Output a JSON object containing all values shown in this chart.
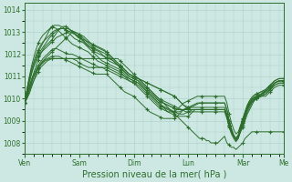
{
  "background_color": "#cde8e2",
  "plot_bg_color": "#cde8e2",
  "grid_color": "#a8cfc8",
  "line_color": "#2d6e2d",
  "xlabel": "Pression niveau de la mer( hPa )",
  "ylim": [
    1007.5,
    1014.3
  ],
  "yticks": [
    1008,
    1009,
    1010,
    1011,
    1012,
    1013,
    1014
  ],
  "day_ticks": [
    0,
    24,
    48,
    72,
    96,
    114
  ],
  "day_labels": [
    "Ven",
    "Sam",
    "Dim",
    "Lun",
    "Mar",
    "Me"
  ],
  "n_points": 115,
  "series": [
    [
      1009.8,
      1010.0,
      1010.3,
      1010.6,
      1010.8,
      1011.0,
      1011.2,
      1011.4,
      1011.5,
      1011.6,
      1011.7,
      1011.75,
      1011.8,
      1011.8,
      1011.8,
      1011.8,
      1011.8,
      1011.8,
      1011.8,
      1011.8,
      1011.8,
      1011.8,
      1011.8,
      1011.8,
      1011.8,
      1011.8,
      1011.8,
      1011.8,
      1011.8,
      1011.8,
      1011.8,
      1011.8,
      1011.8,
      1011.8,
      1011.8,
      1011.8,
      1011.8,
      1011.8,
      1011.8,
      1011.8,
      1011.8,
      1011.8,
      1011.7,
      1011.6,
      1011.5,
      1011.4,
      1011.3,
      1011.2,
      1011.1,
      1011.0,
      1010.9,
      1010.8,
      1010.7,
      1010.6,
      1010.5,
      1010.4,
      1010.3,
      1010.2,
      1010.1,
      1010.0,
      1009.9,
      1009.8,
      1009.7,
      1009.6,
      1009.5,
      1009.4,
      1009.3,
      1009.2,
      1009.1,
      1009.0,
      1008.9,
      1008.8,
      1008.7,
      1008.6,
      1008.5,
      1008.4,
      1008.3,
      1008.2,
      1008.2,
      1008.2,
      1008.1,
      1008.1,
      1008.0,
      1008.0,
      1008.0,
      1008.0,
      1008.1,
      1008.2,
      1008.3,
      1008.0,
      1007.9,
      1007.8,
      1007.8,
      1007.7,
      1007.8,
      1007.9,
      1008.0,
      1008.2,
      1008.3,
      1008.4,
      1008.5,
      1008.5,
      1008.5,
      1008.5,
      1008.5,
      1008.5,
      1008.5,
      1008.5,
      1008.5,
      1008.5,
      1008.5,
      1008.5,
      1008.5,
      1008.5,
      1008.5
    ],
    [
      1009.8,
      1010.1,
      1010.4,
      1010.7,
      1011.0,
      1011.2,
      1011.4,
      1011.5,
      1011.6,
      1011.7,
      1011.75,
      1011.8,
      1011.8,
      1011.8,
      1011.8,
      1011.8,
      1011.8,
      1011.8,
      1011.8,
      1011.8,
      1011.8,
      1011.8,
      1011.75,
      1011.7,
      1011.6,
      1011.55,
      1011.5,
      1011.45,
      1011.4,
      1011.4,
      1011.4,
      1011.4,
      1011.4,
      1011.4,
      1011.4,
      1011.4,
      1011.4,
      1011.35,
      1011.3,
      1011.25,
      1011.2,
      1011.15,
      1011.1,
      1011.05,
      1011.0,
      1010.95,
      1010.9,
      1010.85,
      1010.8,
      1010.75,
      1010.7,
      1010.6,
      1010.5,
      1010.4,
      1010.3,
      1010.2,
      1010.1,
      1010.0,
      1009.9,
      1009.8,
      1009.7,
      1009.6,
      1009.5,
      1009.4,
      1009.35,
      1009.3,
      1009.25,
      1009.2,
      1009.2,
      1009.2,
      1009.2,
      1009.2,
      1009.2,
      1009.3,
      1009.4,
      1009.5,
      1009.5,
      1009.5,
      1009.5,
      1009.5,
      1009.5,
      1009.5,
      1009.5,
      1009.5,
      1009.5,
      1009.5,
      1009.5,
      1009.5,
      1009.5,
      1009.2,
      1008.8,
      1008.5,
      1008.3,
      1008.2,
      1008.3,
      1008.5,
      1008.7,
      1009.0,
      1009.3,
      1009.5,
      1009.7,
      1009.9,
      1010.0,
      1010.1,
      1010.2,
      1010.3,
      1010.35,
      1010.4,
      1010.5,
      1010.6,
      1010.7,
      1010.75,
      1010.8,
      1010.8,
      1010.8
    ],
    [
      1009.8,
      1010.1,
      1010.4,
      1010.7,
      1011.0,
      1011.2,
      1011.4,
      1011.55,
      1011.65,
      1011.75,
      1011.8,
      1011.85,
      1011.9,
      1011.9,
      1011.9,
      1011.9,
      1011.85,
      1011.8,
      1011.75,
      1011.7,
      1011.65,
      1011.6,
      1011.55,
      1011.5,
      1011.45,
      1011.4,
      1011.35,
      1011.3,
      1011.25,
      1011.2,
      1011.15,
      1011.1,
      1011.1,
      1011.1,
      1011.1,
      1011.1,
      1011.1,
      1011.0,
      1010.9,
      1010.8,
      1010.7,
      1010.6,
      1010.5,
      1010.4,
      1010.3,
      1010.25,
      1010.2,
      1010.15,
      1010.1,
      1010.0,
      1009.9,
      1009.8,
      1009.7,
      1009.6,
      1009.5,
      1009.4,
      1009.35,
      1009.3,
      1009.25,
      1009.2,
      1009.15,
      1009.1,
      1009.1,
      1009.1,
      1009.1,
      1009.1,
      1009.1,
      1009.2,
      1009.3,
      1009.4,
      1009.5,
      1009.55,
      1009.6,
      1009.6,
      1009.65,
      1009.7,
      1009.75,
      1009.8,
      1009.8,
      1009.8,
      1009.8,
      1009.8,
      1009.8,
      1009.8,
      1009.8,
      1009.8,
      1009.8,
      1009.8,
      1009.8,
      1009.5,
      1009.0,
      1008.6,
      1008.3,
      1008.1,
      1008.2,
      1008.5,
      1008.8,
      1009.1,
      1009.4,
      1009.6,
      1009.8,
      1009.9,
      1010.0,
      1010.05,
      1010.1,
      1010.1,
      1010.1,
      1010.2,
      1010.3,
      1010.4,
      1010.5,
      1010.55,
      1010.6,
      1010.6,
      1010.6
    ],
    [
      1009.8,
      1010.2,
      1010.55,
      1010.85,
      1011.1,
      1011.3,
      1011.5,
      1011.65,
      1011.8,
      1011.9,
      1012.0,
      1012.1,
      1012.2,
      1012.25,
      1012.25,
      1012.2,
      1012.15,
      1012.1,
      1012.05,
      1012.0,
      1012.0,
      1012.0,
      1011.95,
      1011.9,
      1011.85,
      1011.8,
      1011.75,
      1011.7,
      1011.65,
      1011.6,
      1011.55,
      1011.5,
      1011.45,
      1011.4,
      1011.4,
      1011.35,
      1011.3,
      1011.25,
      1011.2,
      1011.15,
      1011.1,
      1011.05,
      1011.0,
      1010.95,
      1010.9,
      1010.85,
      1010.8,
      1010.75,
      1010.7,
      1010.6,
      1010.5,
      1010.4,
      1010.3,
      1010.2,
      1010.1,
      1010.0,
      1009.9,
      1009.8,
      1009.7,
      1009.6,
      1009.55,
      1009.5,
      1009.45,
      1009.4,
      1009.4,
      1009.4,
      1009.4,
      1009.5,
      1009.6,
      1009.7,
      1009.8,
      1009.85,
      1009.9,
      1009.95,
      1010.0,
      1010.05,
      1010.1,
      1010.1,
      1010.1,
      1010.1,
      1010.1,
      1010.1,
      1010.1,
      1010.1,
      1010.1,
      1010.1,
      1010.1,
      1010.1,
      1010.1,
      1009.8,
      1009.3,
      1008.9,
      1008.6,
      1008.4,
      1008.5,
      1008.8,
      1009.1,
      1009.4,
      1009.7,
      1009.9,
      1010.05,
      1010.15,
      1010.2,
      1010.25,
      1010.3,
      1010.35,
      1010.4,
      1010.5,
      1010.6,
      1010.7,
      1010.8,
      1010.85,
      1010.9,
      1010.9,
      1010.9
    ],
    [
      1009.8,
      1010.3,
      1010.75,
      1011.15,
      1011.45,
      1011.7,
      1011.9,
      1012.05,
      1012.15,
      1012.25,
      1012.35,
      1012.45,
      1012.55,
      1012.65,
      1012.75,
      1012.8,
      1012.85,
      1012.9,
      1012.95,
      1013.0,
      1013.05,
      1013.05,
      1013.0,
      1012.95,
      1012.9,
      1012.85,
      1012.8,
      1012.7,
      1012.6,
      1012.5,
      1012.4,
      1012.35,
      1012.3,
      1012.25,
      1012.2,
      1012.15,
      1012.1,
      1012.0,
      1011.9,
      1011.8,
      1011.7,
      1011.6,
      1011.5,
      1011.4,
      1011.3,
      1011.2,
      1011.1,
      1011.05,
      1011.0,
      1010.95,
      1010.9,
      1010.85,
      1010.8,
      1010.75,
      1010.7,
      1010.65,
      1010.6,
      1010.55,
      1010.5,
      1010.45,
      1010.4,
      1010.35,
      1010.3,
      1010.25,
      1010.2,
      1010.15,
      1010.1,
      1010.0,
      1009.9,
      1009.8,
      1009.7,
      1009.6,
      1009.55,
      1009.5,
      1009.5,
      1009.5,
      1009.5,
      1009.5,
      1009.5,
      1009.5,
      1009.5,
      1009.5,
      1009.5,
      1009.5,
      1009.5,
      1009.5,
      1009.5,
      1009.5,
      1009.5,
      1009.2,
      1008.8,
      1008.5,
      1008.3,
      1008.2,
      1008.3,
      1008.6,
      1008.9,
      1009.2,
      1009.5,
      1009.7,
      1009.85,
      1009.95,
      1010.0,
      1010.05,
      1010.1,
      1010.15,
      1010.2,
      1010.3,
      1010.4,
      1010.5,
      1010.6,
      1010.65,
      1010.7,
      1010.7,
      1010.7
    ],
    [
      1009.8,
      1010.35,
      1010.85,
      1011.3,
      1011.65,
      1011.95,
      1012.2,
      1012.4,
      1012.55,
      1012.65,
      1012.75,
      1012.85,
      1012.95,
      1013.05,
      1013.1,
      1013.15,
      1013.15,
      1013.15,
      1013.15,
      1013.15,
      1013.1,
      1013.05,
      1012.95,
      1012.85,
      1012.75,
      1012.65,
      1012.55,
      1012.45,
      1012.35,
      1012.3,
      1012.25,
      1012.2,
      1012.15,
      1012.1,
      1012.0,
      1011.9,
      1011.8,
      1011.7,
      1011.65,
      1011.6,
      1011.55,
      1011.5,
      1011.45,
      1011.4,
      1011.3,
      1011.2,
      1011.1,
      1011.05,
      1011.0,
      1010.95,
      1010.9,
      1010.85,
      1010.8,
      1010.75,
      1010.7,
      1010.65,
      1010.6,
      1010.55,
      1010.5,
      1010.45,
      1010.4,
      1010.35,
      1010.3,
      1010.25,
      1010.2,
      1010.15,
      1010.1,
      1010.0,
      1009.9,
      1009.8,
      1009.7,
      1009.65,
      1009.6,
      1009.6,
      1009.6,
      1009.6,
      1009.6,
      1009.6,
      1009.6,
      1009.6,
      1009.6,
      1009.6,
      1009.6,
      1009.6,
      1009.6,
      1009.6,
      1009.6,
      1009.6,
      1009.6,
      1009.3,
      1008.9,
      1008.6,
      1008.35,
      1008.2,
      1008.35,
      1008.7,
      1009.0,
      1009.3,
      1009.6,
      1009.8,
      1009.95,
      1010.05,
      1010.1,
      1010.15,
      1010.2,
      1010.25,
      1010.3,
      1010.4,
      1010.5,
      1010.6,
      1010.7,
      1010.75,
      1010.8,
      1010.8,
      1010.8
    ],
    [
      1009.8,
      1010.4,
      1010.95,
      1011.45,
      1011.85,
      1012.2,
      1012.5,
      1012.7,
      1012.85,
      1012.95,
      1013.05,
      1013.15,
      1013.25,
      1013.3,
      1013.3,
      1013.3,
      1013.25,
      1013.2,
      1013.1,
      1013.0,
      1012.9,
      1012.8,
      1012.7,
      1012.65,
      1012.6,
      1012.55,
      1012.5,
      1012.4,
      1012.3,
      1012.2,
      1012.1,
      1012.0,
      1011.9,
      1011.8,
      1011.7,
      1011.65,
      1011.6,
      1011.55,
      1011.5,
      1011.45,
      1011.4,
      1011.35,
      1011.3,
      1011.2,
      1011.1,
      1011.0,
      1010.9,
      1010.85,
      1010.8,
      1010.75,
      1010.7,
      1010.6,
      1010.5,
      1010.4,
      1010.3,
      1010.2,
      1010.1,
      1010.0,
      1009.9,
      1009.8,
      1009.7,
      1009.65,
      1009.6,
      1009.55,
      1009.5,
      1009.45,
      1009.4,
      1009.35,
      1009.3,
      1009.3,
      1009.3,
      1009.35,
      1009.4,
      1009.45,
      1009.5,
      1009.5,
      1009.5,
      1009.5,
      1009.5,
      1009.5,
      1009.5,
      1009.5,
      1009.5,
      1009.5,
      1009.5,
      1009.5,
      1009.5,
      1009.5,
      1009.5,
      1009.2,
      1008.8,
      1008.5,
      1008.3,
      1008.2,
      1008.35,
      1008.7,
      1009.05,
      1009.4,
      1009.7,
      1009.9,
      1010.05,
      1010.15,
      1010.2,
      1010.25,
      1010.3,
      1010.35,
      1010.4,
      1010.5,
      1010.6,
      1010.7,
      1010.8,
      1010.85,
      1010.9,
      1010.9,
      1010.9
    ],
    [
      1009.8,
      1010.4,
      1010.9,
      1011.3,
      1011.6,
      1011.85,
      1012.1,
      1012.3,
      1012.5,
      1012.7,
      1012.9,
      1013.1,
      1013.2,
      1013.2,
      1013.15,
      1013.05,
      1012.95,
      1012.85,
      1012.75,
      1012.65,
      1012.55,
      1012.45,
      1012.4,
      1012.35,
      1012.3,
      1012.25,
      1012.2,
      1012.15,
      1012.1,
      1012.0,
      1011.9,
      1011.8,
      1011.7,
      1011.65,
      1011.6,
      1011.55,
      1011.5,
      1011.45,
      1011.4,
      1011.35,
      1011.3,
      1011.25,
      1011.2,
      1011.1,
      1011.0,
      1010.9,
      1010.8,
      1010.75,
      1010.7,
      1010.65,
      1010.6,
      1010.5,
      1010.4,
      1010.3,
      1010.2,
      1010.1,
      1010.0,
      1009.9,
      1009.8,
      1009.7,
      1009.65,
      1009.6,
      1009.55,
      1009.5,
      1009.45,
      1009.4,
      1009.4,
      1009.4,
      1009.4,
      1009.45,
      1009.5,
      1009.55,
      1009.6,
      1009.65,
      1009.7,
      1009.75,
      1009.8,
      1009.8,
      1009.8,
      1009.8,
      1009.8,
      1009.8,
      1009.8,
      1009.8,
      1009.8,
      1009.8,
      1009.8,
      1009.8,
      1009.8,
      1009.5,
      1009.0,
      1008.65,
      1008.35,
      1008.2,
      1008.35,
      1008.7,
      1009.0,
      1009.3,
      1009.55,
      1009.75,
      1009.9,
      1010.0,
      1010.05,
      1010.1,
      1010.15,
      1010.2,
      1010.3,
      1010.4,
      1010.5,
      1010.6,
      1010.7,
      1010.75,
      1010.8,
      1010.8,
      1010.8
    ],
    [
      1009.8,
      1010.15,
      1010.5,
      1010.85,
      1011.15,
      1011.45,
      1011.75,
      1012.0,
      1012.2,
      1012.35,
      1012.45,
      1012.55,
      1012.65,
      1012.8,
      1012.95,
      1013.1,
      1013.2,
      1013.25,
      1013.25,
      1013.2,
      1013.1,
      1013.0,
      1012.9,
      1012.8,
      1012.75,
      1012.7,
      1012.65,
      1012.6,
      1012.55,
      1012.5,
      1012.45,
      1012.4,
      1012.35,
      1012.3,
      1012.25,
      1012.2,
      1012.1,
      1012.0,
      1011.9,
      1011.8,
      1011.7,
      1011.6,
      1011.5,
      1011.4,
      1011.3,
      1011.2,
      1011.1,
      1011.05,
      1011.0,
      1010.95,
      1010.9,
      1010.8,
      1010.7,
      1010.6,
      1010.5,
      1010.4,
      1010.3,
      1010.2,
      1010.1,
      1010.0,
      1009.95,
      1009.9,
      1009.85,
      1009.8,
      1009.75,
      1009.7,
      1009.65,
      1009.6,
      1009.55,
      1009.5,
      1009.45,
      1009.4,
      1009.4,
      1009.4,
      1009.4,
      1009.4,
      1009.4,
      1009.4,
      1009.4,
      1009.4,
      1009.4,
      1009.4,
      1009.4,
      1009.4,
      1009.4,
      1009.4,
      1009.4,
      1009.4,
      1009.4,
      1009.1,
      1008.7,
      1008.4,
      1008.2,
      1008.05,
      1008.2,
      1008.55,
      1008.9,
      1009.2,
      1009.5,
      1009.7,
      1009.85,
      1009.95,
      1010.0,
      1010.05,
      1010.1,
      1010.15,
      1010.2,
      1010.3,
      1010.4,
      1010.5,
      1010.6,
      1010.65,
      1010.7,
      1010.7,
      1010.7
    ],
    [
      1009.8,
      1010.25,
      1010.7,
      1011.1,
      1011.45,
      1011.7,
      1011.95,
      1012.15,
      1012.3,
      1012.45,
      1012.6,
      1012.75,
      1012.85,
      1012.95,
      1013.05,
      1013.1,
      1013.15,
      1013.15,
      1013.1,
      1013.05,
      1013.0,
      1012.95,
      1012.9,
      1012.85,
      1012.8,
      1012.7,
      1012.6,
      1012.5,
      1012.4,
      1012.3,
      1012.2,
      1012.1,
      1012.05,
      1012.0,
      1011.95,
      1011.9,
      1011.85,
      1011.8,
      1011.75,
      1011.7,
      1011.6,
      1011.5,
      1011.4,
      1011.3,
      1011.2,
      1011.1,
      1011.0,
      1010.95,
      1010.9,
      1010.85,
      1010.8,
      1010.7,
      1010.6,
      1010.5,
      1010.4,
      1010.3,
      1010.2,
      1010.1,
      1010.0,
      1009.9,
      1009.85,
      1009.8,
      1009.75,
      1009.7,
      1009.65,
      1009.6,
      1009.55,
      1009.5,
      1009.5,
      1009.5,
      1009.5,
      1009.5,
      1009.5,
      1009.5,
      1009.5,
      1009.5,
      1009.5,
      1009.5,
      1009.5,
      1009.5,
      1009.5,
      1009.5,
      1009.5,
      1009.5,
      1009.5,
      1009.5,
      1009.5,
      1009.5,
      1009.5,
      1009.2,
      1008.8,
      1008.5,
      1008.3,
      1008.15,
      1008.3,
      1008.65,
      1009.0,
      1009.3,
      1009.6,
      1009.8,
      1009.95,
      1010.05,
      1010.1,
      1010.15,
      1010.2,
      1010.25,
      1010.3,
      1010.4,
      1010.5,
      1010.6,
      1010.7,
      1010.75,
      1010.8,
      1010.8,
      1010.8
    ],
    [
      1009.8,
      1010.0,
      1010.2,
      1010.5,
      1010.8,
      1011.1,
      1011.35,
      1011.55,
      1011.7,
      1011.8,
      1011.9,
      1012.0,
      1012.1,
      1012.2,
      1012.3,
      1012.4,
      1012.5,
      1012.6,
      1012.7,
      1012.8,
      1012.9,
      1013.0,
      1013.0,
      1012.95,
      1012.9,
      1012.8,
      1012.7,
      1012.6,
      1012.5,
      1012.4,
      1012.3,
      1012.25,
      1012.2,
      1012.15,
      1012.1,
      1012.05,
      1012.0,
      1011.9,
      1011.8,
      1011.7,
      1011.6,
      1011.5,
      1011.4,
      1011.3,
      1011.2,
      1011.1,
      1011.0,
      1010.95,
      1010.9,
      1010.85,
      1010.8,
      1010.7,
      1010.6,
      1010.5,
      1010.4,
      1010.3,
      1010.2,
      1010.1,
      1010.0,
      1009.9,
      1009.85,
      1009.8,
      1009.75,
      1009.7,
      1009.65,
      1009.6,
      1009.55,
      1009.5,
      1009.5,
      1009.5,
      1009.5,
      1009.5,
      1009.5,
      1009.5,
      1009.5,
      1009.5,
      1009.5,
      1009.5,
      1009.5,
      1009.5,
      1009.5,
      1009.5,
      1009.5,
      1009.5,
      1009.5,
      1009.5,
      1009.5,
      1009.5,
      1009.5,
      1009.2,
      1008.8,
      1008.5,
      1008.3,
      1008.15,
      1008.3,
      1008.65,
      1009.0,
      1009.3,
      1009.6,
      1009.8,
      1009.95,
      1010.05,
      1010.1,
      1010.15,
      1010.2,
      1010.25,
      1010.3,
      1010.4,
      1010.5,
      1010.6,
      1010.7,
      1010.75,
      1010.8,
      1010.8,
      1010.8
    ]
  ]
}
